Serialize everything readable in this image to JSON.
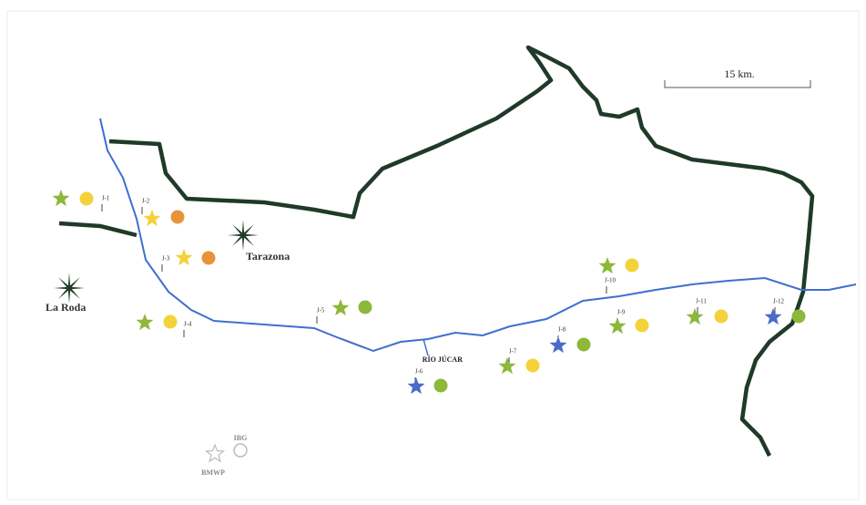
{
  "scale_bar": "15 km.",
  "towns": [
    {
      "label": "Tarazona"
    },
    {
      "label": "La Roda"
    }
  ],
  "river_label": "RÍO JÚCAR",
  "stations": [
    {
      "label": "J-1",
      "star_color": "#8db83a",
      "circle_color": "#f3d23a"
    },
    {
      "label": "J-2",
      "star_color": "#f3d23a",
      "circle_color": "#e8933a"
    },
    {
      "label": "J-3",
      "star_color": "#f3d23a",
      "circle_color": "#e8933a"
    },
    {
      "label": "J-4",
      "star_color": "#8db83a",
      "circle_color": "#f3d23a"
    },
    {
      "label": "J-5",
      "star_color": "#8db83a",
      "circle_color": "#8db83a"
    },
    {
      "label": "J-6",
      "star_color": "#4a6cc8",
      "circle_color": "#8db83a"
    },
    {
      "label": "J-7",
      "star_color": "#8db83a",
      "circle_color": "#f3d23a"
    },
    {
      "label": "J-8",
      "star_color": "#4a6cc8",
      "circle_color": "#8db83a"
    },
    {
      "label": "J-9",
      "star_color": "#8db83a",
      "circle_color": "#f3d23a"
    },
    {
      "label": "J-10",
      "star_color": "#8db83a",
      "circle_color": "#f3d23a"
    },
    {
      "label": "J-11",
      "star_color": "#8db83a",
      "circle_color": "#f3d23a"
    },
    {
      "label": "J-12",
      "star_color": "#4a6cc8",
      "circle_color": "#8db83a"
    }
  ],
  "legend": {
    "star_label": "BMWP",
    "circle_label": "IBG"
  }
}
